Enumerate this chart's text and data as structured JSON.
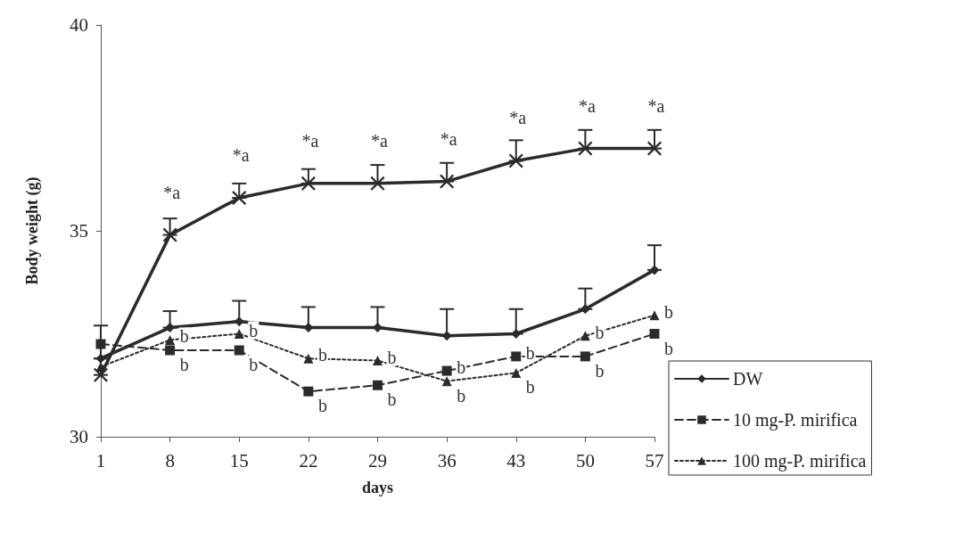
{
  "chart_data": {
    "type": "line",
    "xlabel": "days",
    "ylabel": "Body weight (g)",
    "categories": [
      "1",
      "8",
      "15",
      "22",
      "29",
      "36",
      "43",
      "50",
      "57"
    ],
    "ylim": [
      30,
      40
    ],
    "yticks": [
      30,
      35,
      40
    ],
    "grid": false,
    "legend": "bottom right",
    "series": [
      {
        "name": "DW",
        "color": "#2b2b2b",
        "marker": "diamond",
        "line_style": "solid",
        "values": [
          31.9,
          32.65,
          32.8,
          32.65,
          32.65,
          32.45,
          32.5,
          33.1,
          34.05
        ],
        "errors": [
          [
            31.9,
            32.7
          ],
          [
            32.65,
            33.05
          ],
          [
            32.8,
            33.3
          ],
          [
            32.65,
            33.15
          ],
          [
            32.65,
            33.15
          ],
          [
            32.45,
            33.1
          ],
          [
            32.5,
            33.1
          ],
          [
            33.1,
            33.6
          ],
          [
            34.05,
            34.65
          ]
        ]
      },
      {
        "name": "10 mg-P. mirifica",
        "color": "#2b2b2b",
        "marker": "square",
        "line_style": "dashed",
        "values": [
          32.25,
          32.1,
          32.1,
          31.1,
          31.25,
          31.6,
          31.95,
          31.95,
          32.5
        ]
      },
      {
        "name": "100 mg-P. mirifica",
        "color": "#2b2b2b",
        "marker": "triangle",
        "line_style": "dotted",
        "values": [
          31.7,
          32.35,
          32.5,
          31.9,
          31.85,
          31.35,
          31.55,
          32.45,
          32.95
        ]
      },
      {
        "color": "#2b2b2b",
        "marker": "cross",
        "line_style": "solid",
        "values": [
          31.5,
          34.9,
          35.8,
          36.15,
          36.15,
          36.2,
          36.7,
          37.0,
          37.0
        ],
        "errors": [
          [
            31.5,
            31.9
          ],
          [
            34.9,
            35.3
          ],
          [
            35.8,
            36.15
          ],
          [
            36.15,
            36.5
          ],
          [
            36.15,
            36.6
          ],
          [
            36.2,
            36.65
          ],
          [
            36.7,
            37.2
          ],
          [
            37.0,
            37.45
          ],
          [
            37.0,
            37.45
          ]
        ]
      }
    ],
    "annotations": [
      {
        "text": "*a",
        "x": "8",
        "y": 34.9
      },
      {
        "text": "*a",
        "x": "15",
        "y": 35.8
      },
      {
        "text": "*a",
        "x": "22",
        "y": 36.15
      },
      {
        "text": "*a",
        "x": "29",
        "y": 36.15
      },
      {
        "text": "*a",
        "x": "36",
        "y": 36.2
      },
      {
        "text": "*a",
        "x": "43",
        "y": 36.7
      },
      {
        "text": "*a",
        "x": "50",
        "y": 37.0
      },
      {
        "text": "*a",
        "x": "57",
        "y": 37.0
      },
      {
        "text": "b",
        "x": "8",
        "y": 32.35
      },
      {
        "text": "b",
        "x": "15",
        "y": 32.5
      },
      {
        "text": "b",
        "x": "22",
        "y": 31.9
      },
      {
        "text": "b",
        "x": "29",
        "y": 31.85
      },
      {
        "text": "b",
        "x": "36",
        "y": 31.35
      },
      {
        "text": "b",
        "x": "43",
        "y": 31.55
      },
      {
        "text": "b",
        "x": "50",
        "y": 32.45
      },
      {
        "text": "b",
        "x": "57",
        "y": 32.95
      },
      {
        "text": "b",
        "x": "8",
        "y": 32.1
      },
      {
        "text": "b",
        "x": "15",
        "y": 32.1
      },
      {
        "text": "b",
        "x": "22",
        "y": 31.1
      },
      {
        "text": "b",
        "x": "29",
        "y": 31.25
      },
      {
        "text": "b",
        "x": "36",
        "y": 31.6
      },
      {
        "text": "b",
        "x": "43",
        "y": 31.95
      },
      {
        "text": "b",
        "x": "50",
        "y": 31.95
      },
      {
        "text": "b",
        "x": "57",
        "y": 32.5
      }
    ]
  }
}
